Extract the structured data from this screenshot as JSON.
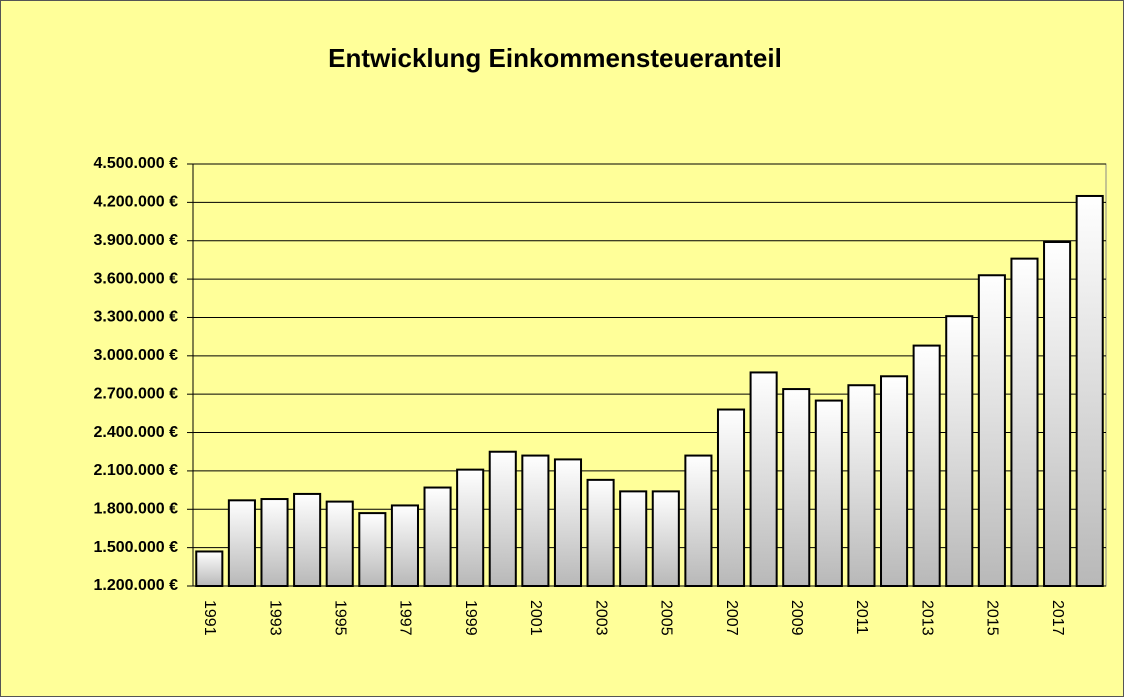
{
  "chart_data": {
    "type": "bar",
    "title": "Entwicklung Einkommensteueranteil",
    "categories": [
      "1991",
      null,
      "1993",
      null,
      "1995",
      null,
      "1997",
      null,
      "1999",
      null,
      "2001",
      null,
      "2003",
      null,
      "2005",
      null,
      "2007",
      null,
      "2009",
      null,
      "2011",
      null,
      "2013",
      null,
      "2015",
      null,
      "2017",
      null
    ],
    "values": [
      1470000,
      1870000,
      1880000,
      1920000,
      1860000,
      1770000,
      1830000,
      1970000,
      2110000,
      2250000,
      2220000,
      2190000,
      2030000,
      1940000,
      1940000,
      2220000,
      2580000,
      2870000,
      2740000,
      2650000,
      2770000,
      2840000,
      3080000,
      3310000,
      3630000,
      3760000,
      3890000,
      4250000
    ],
    "ylim": [
      1200000,
      4500000
    ],
    "yticks": [
      {
        "value": 1200000,
        "label": "1.200.000 €"
      },
      {
        "value": 1500000,
        "label": "1.500.000 €"
      },
      {
        "value": 1800000,
        "label": "1.800.000 €"
      },
      {
        "value": 2100000,
        "label": "2.100.000 €"
      },
      {
        "value": 2400000,
        "label": "2.400.000 €"
      },
      {
        "value": 2700000,
        "label": "2.700.000 €"
      },
      {
        "value": 3000000,
        "label": "3.000.000 €"
      },
      {
        "value": 3300000,
        "label": "3.300.000 €"
      },
      {
        "value": 3600000,
        "label": "3.600.000 €"
      },
      {
        "value": 3900000,
        "label": "3.900.000 €"
      },
      {
        "value": 4200000,
        "label": "4.200.000 €"
      },
      {
        "value": 4500000,
        "label": "4.500.000 €"
      }
    ],
    "grid": true
  }
}
